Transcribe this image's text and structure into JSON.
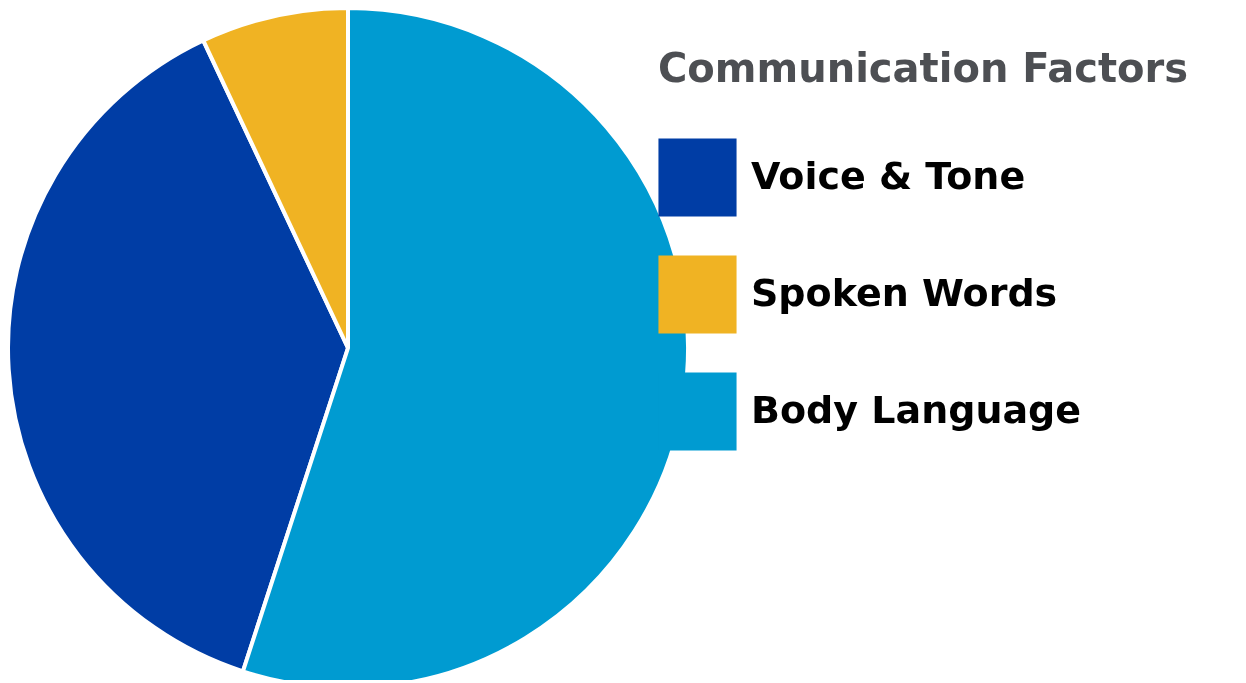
{
  "chart_data": {
    "type": "pie",
    "legend_title": "Communication Factors",
    "categories": [
      "Voice & Tone",
      "Spoken Words",
      "Body Language"
    ],
    "values": [
      38,
      7,
      55
    ],
    "colors": [
      "#003da5",
      "#f0b323",
      "#009bd1"
    ],
    "legend": "right"
  }
}
